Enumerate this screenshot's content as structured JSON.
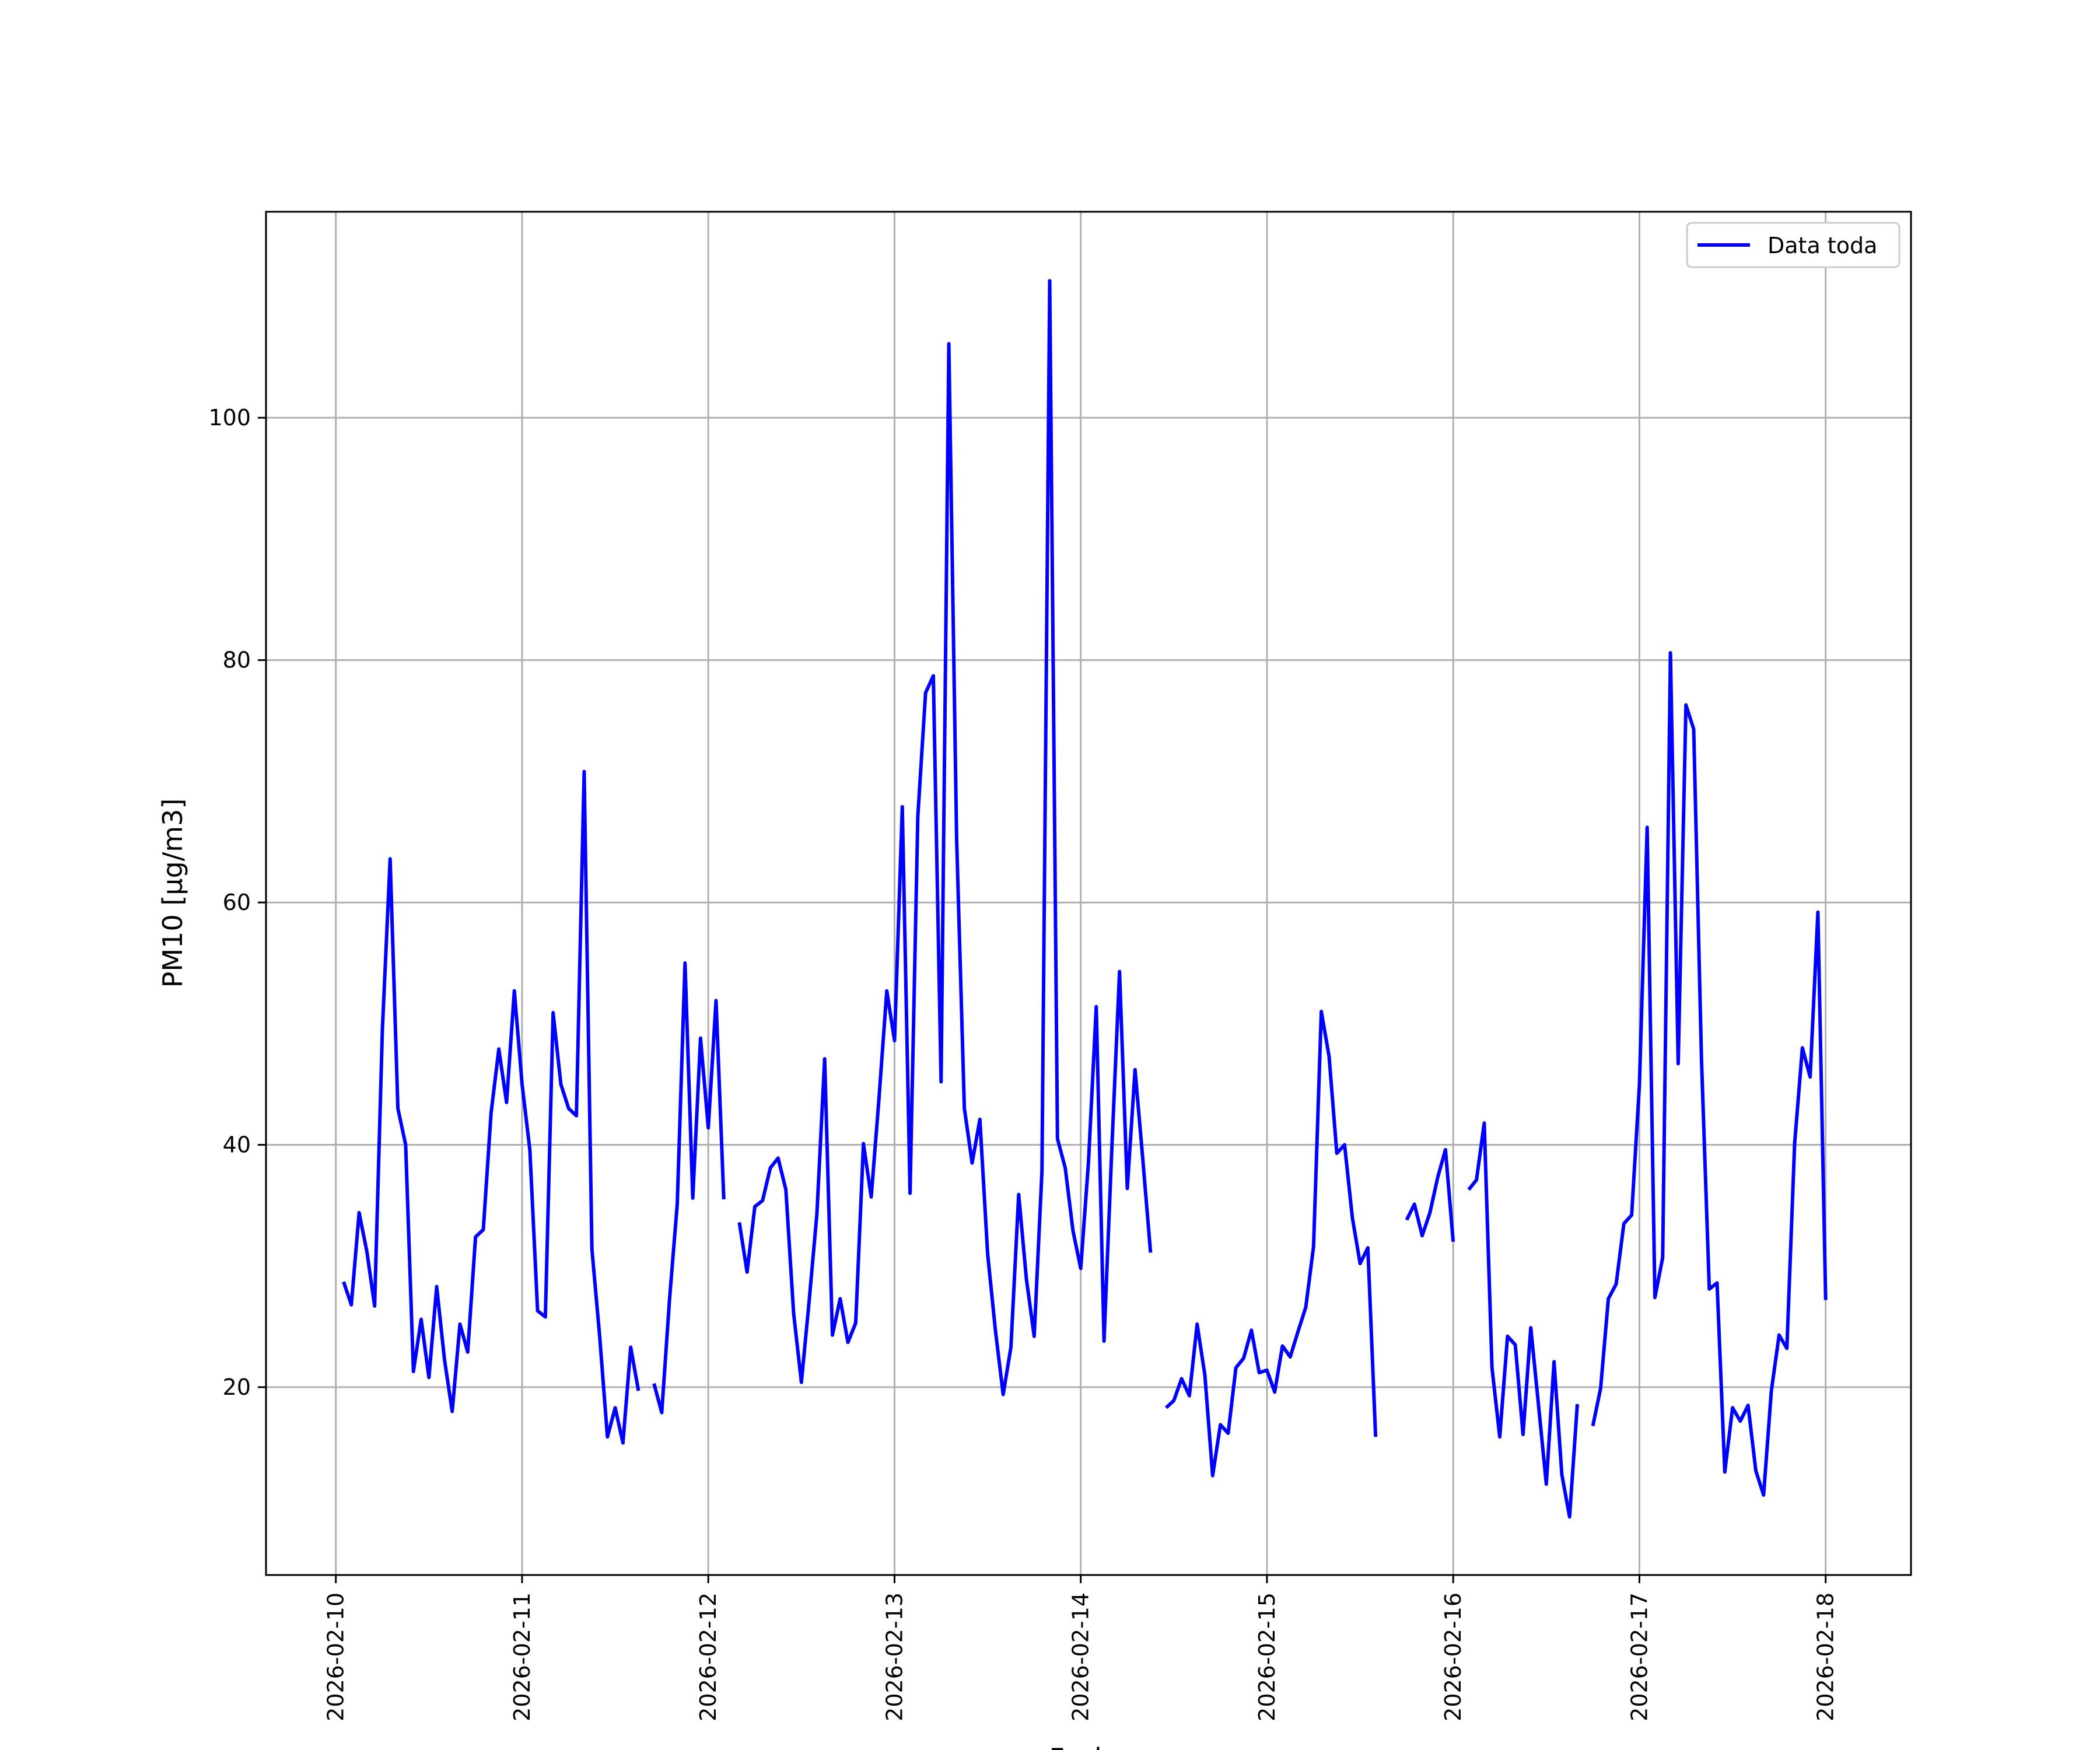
{
  "chart_data": {
    "type": "line",
    "title": "",
    "xlabel": "Fecha",
    "ylabel": "PM10 [μg/m3]",
    "x_tick_labels": [
      "2026-02-10",
      "2026-02-11",
      "2026-02-12",
      "2026-02-13",
      "2026-02-14",
      "2026-02-15",
      "2026-02-16",
      "2026-02-17",
      "2026-02-18"
    ],
    "y_ticks": [
      20,
      40,
      60,
      80,
      100
    ],
    "xlim": [
      "2026-02-09T15:00",
      "2026-02-18T11:00"
    ],
    "ylim": [
      4.5,
      117
    ],
    "grid": true,
    "legend": "upper right",
    "series": [
      {
        "name": "Data toda",
        "color": "#0000ff",
        "points": [
          [
            "2026-02-10T01:00",
            28.7
          ],
          [
            "2026-02-10T02:00",
            26.8
          ],
          [
            "2026-02-10T03:00",
            34.4
          ],
          [
            "2026-02-10T04:00",
            31.2
          ],
          [
            "2026-02-10T05:00",
            26.7
          ],
          [
            "2026-02-10T06:00",
            49.5
          ],
          [
            "2026-02-10T07:00",
            63.6
          ],
          [
            "2026-02-10T08:00",
            43.0
          ],
          [
            "2026-02-10T09:00",
            40.0
          ],
          [
            "2026-02-10T10:00",
            21.3
          ],
          [
            "2026-02-10T11:00",
            25.6
          ],
          [
            "2026-02-10T12:00",
            20.8
          ],
          [
            "2026-02-10T13:00",
            28.3
          ],
          [
            "2026-02-10T14:00",
            22.3
          ],
          [
            "2026-02-10T15:00",
            18.0
          ],
          [
            "2026-02-10T16:00",
            25.2
          ],
          [
            "2026-02-10T17:00",
            22.9
          ],
          [
            "2026-02-10T18:00",
            32.4
          ],
          [
            "2026-02-10T19:00",
            33.0
          ],
          [
            "2026-02-10T20:00",
            42.6
          ],
          [
            "2026-02-10T21:00",
            47.9
          ],
          [
            "2026-02-10T22:00",
            43.5
          ],
          [
            "2026-02-10T23:00",
            52.7
          ],
          [
            "2026-02-11T00:00",
            45.0
          ],
          [
            "2026-02-11T01:00",
            39.6
          ],
          [
            "2026-02-11T02:00",
            26.3
          ],
          [
            "2026-02-11T03:00",
            25.8
          ],
          [
            "2026-02-11T04:00",
            50.9
          ],
          [
            "2026-02-11T05:00",
            45.0
          ],
          [
            "2026-02-11T06:00",
            43.0
          ],
          [
            "2026-02-11T07:00",
            42.4
          ],
          [
            "2026-02-11T08:00",
            70.8
          ],
          [
            "2026-02-11T09:00",
            31.4
          ],
          [
            "2026-02-11T10:00",
            24.2
          ],
          [
            "2026-02-11T11:00",
            15.9
          ],
          [
            "2026-02-11T12:00",
            18.3
          ],
          [
            "2026-02-11T13:00",
            15.4
          ],
          [
            "2026-02-11T14:00",
            23.3
          ],
          [
            "2026-02-11T15:00",
            19.7
          ],
          [
            "2026-02-11T17:00",
            20.3
          ],
          [
            "2026-02-11T18:00",
            17.9
          ],
          [
            "2026-02-11T19:00",
            27.2
          ],
          [
            "2026-02-11T20:00",
            35.1
          ],
          [
            "2026-02-11T21:00",
            55.0
          ],
          [
            "2026-02-11T22:00",
            35.6
          ],
          [
            "2026-02-11T23:00",
            48.8
          ],
          [
            "2026-02-12T00:00",
            41.4
          ],
          [
            "2026-02-12T01:00",
            51.9
          ],
          [
            "2026-02-12T02:00",
            35.5
          ],
          [
            "2026-02-12T04:00",
            33.6
          ],
          [
            "2026-02-12T05:00",
            29.5
          ],
          [
            "2026-02-12T06:00",
            34.9
          ],
          [
            "2026-02-12T07:00",
            35.4
          ],
          [
            "2026-02-12T08:00",
            38.1
          ],
          [
            "2026-02-12T09:00",
            38.9
          ],
          [
            "2026-02-12T10:00",
            36.3
          ],
          [
            "2026-02-12T11:00",
            26.1
          ],
          [
            "2026-02-12T12:00",
            20.4
          ],
          [
            "2026-02-12T13:00",
            27.1
          ],
          [
            "2026-02-12T14:00",
            34.3
          ],
          [
            "2026-02-12T15:00",
            47.1
          ],
          [
            "2026-02-12T16:00",
            24.3
          ],
          [
            "2026-02-12T17:00",
            27.3
          ],
          [
            "2026-02-12T18:00",
            23.7
          ],
          [
            "2026-02-12T19:00",
            25.3
          ],
          [
            "2026-02-12T20:00",
            40.1
          ],
          [
            "2026-02-12T21:00",
            35.7
          ],
          [
            "2026-02-12T22:00",
            43.8
          ],
          [
            "2026-02-12T23:00",
            52.7
          ],
          [
            "2026-02-13T00:00",
            48.6
          ],
          [
            "2026-02-13T01:00",
            67.9
          ],
          [
            "2026-02-13T02:00",
            36.0
          ],
          [
            "2026-02-13T03:00",
            67.1
          ],
          [
            "2026-02-13T04:00",
            77.3
          ],
          [
            "2026-02-13T05:00",
            78.7
          ],
          [
            "2026-02-13T06:00",
            45.2
          ],
          [
            "2026-02-13T07:00",
            106.1
          ],
          [
            "2026-02-13T08:00",
            65.3
          ],
          [
            "2026-02-13T09:00",
            43.0
          ],
          [
            "2026-02-13T10:00",
            38.5
          ],
          [
            "2026-02-13T11:00",
            42.1
          ],
          [
            "2026-02-13T12:00",
            31.0
          ],
          [
            "2026-02-13T13:00",
            24.7
          ],
          [
            "2026-02-13T14:00",
            19.4
          ],
          [
            "2026-02-13T15:00",
            23.3
          ],
          [
            "2026-02-13T16:00",
            35.9
          ],
          [
            "2026-02-13T17:00",
            28.9
          ],
          [
            "2026-02-13T18:00",
            24.2
          ],
          [
            "2026-02-13T19:00",
            37.8
          ],
          [
            "2026-02-13T20:00",
            111.3
          ],
          [
            "2026-02-13T21:00",
            40.5
          ],
          [
            "2026-02-13T22:00",
            38.1
          ],
          [
            "2026-02-13T23:00",
            32.9
          ],
          [
            "2026-02-14T00:00",
            29.8
          ],
          [
            "2026-02-14T01:00",
            38.6
          ],
          [
            "2026-02-14T02:00",
            51.4
          ],
          [
            "2026-02-14T03:00",
            23.8
          ],
          [
            "2026-02-14T04:00",
            39.6
          ],
          [
            "2026-02-14T05:00",
            54.3
          ],
          [
            "2026-02-14T06:00",
            36.4
          ],
          [
            "2026-02-14T07:00",
            46.2
          ],
          [
            "2026-02-14T08:00",
            38.8
          ],
          [
            "2026-02-14T09:00",
            31.1
          ],
          [
            "2026-02-14T11:00",
            18.3
          ],
          [
            "2026-02-14T12:00",
            18.9
          ],
          [
            "2026-02-14T13:00",
            20.7
          ],
          [
            "2026-02-14T14:00",
            19.3
          ],
          [
            "2026-02-14T15:00",
            25.2
          ],
          [
            "2026-02-14T16:00",
            21.0
          ],
          [
            "2026-02-14T17:00",
            12.7
          ],
          [
            "2026-02-14T18:00",
            16.9
          ],
          [
            "2026-02-14T19:00",
            16.2
          ],
          [
            "2026-02-14T20:00",
            21.6
          ],
          [
            "2026-02-14T21:00",
            22.4
          ],
          [
            "2026-02-14T22:00",
            24.7
          ],
          [
            "2026-02-14T23:00",
            21.2
          ],
          [
            "2026-02-15T00:00",
            21.4
          ],
          [
            "2026-02-15T01:00",
            19.6
          ],
          [
            "2026-02-15T02:00",
            23.4
          ],
          [
            "2026-02-15T03:00",
            22.5
          ],
          [
            "2026-02-15T04:00",
            24.6
          ],
          [
            "2026-02-15T05:00",
            26.6
          ],
          [
            "2026-02-15T06:00",
            31.6
          ],
          [
            "2026-02-15T07:00",
            51.0
          ],
          [
            "2026-02-15T08:00",
            47.3
          ],
          [
            "2026-02-15T09:00",
            39.3
          ],
          [
            "2026-02-15T10:00",
            40.0
          ],
          [
            "2026-02-15T11:00",
            34.0
          ],
          [
            "2026-02-15T12:00",
            30.2
          ],
          [
            "2026-02-15T13:00",
            31.5
          ],
          [
            "2026-02-15T14:00",
            15.9
          ],
          [
            "2026-02-15T18:00",
            33.8
          ],
          [
            "2026-02-15T19:00",
            35.1
          ],
          [
            "2026-02-15T20:00",
            32.5
          ],
          [
            "2026-02-15T21:00",
            34.4
          ],
          [
            "2026-02-15T22:00",
            37.3
          ],
          [
            "2026-02-15T23:00",
            39.6
          ],
          [
            "2026-02-16T00:00",
            32.0
          ],
          [
            "2026-02-16T02:00",
            36.3
          ],
          [
            "2026-02-16T03:00",
            37.1
          ],
          [
            "2026-02-16T04:00",
            41.8
          ],
          [
            "2026-02-16T05:00",
            21.6
          ],
          [
            "2026-02-16T06:00",
            15.9
          ],
          [
            "2026-02-16T07:00",
            24.2
          ],
          [
            "2026-02-16T08:00",
            23.5
          ],
          [
            "2026-02-16T09:00",
            16.1
          ],
          [
            "2026-02-16T10:00",
            24.9
          ],
          [
            "2026-02-16T11:00",
            18.5
          ],
          [
            "2026-02-16T12:00",
            12.0
          ],
          [
            "2026-02-16T13:00",
            22.1
          ],
          [
            "2026-02-16T14:00",
            12.8
          ],
          [
            "2026-02-16T15:00",
            9.3
          ],
          [
            "2026-02-16T16:00",
            18.6
          ],
          [
            "2026-02-16T18:00",
            16.8
          ],
          [
            "2026-02-16T19:00",
            19.9
          ],
          [
            "2026-02-16T20:00",
            27.3
          ],
          [
            "2026-02-16T21:00",
            28.5
          ],
          [
            "2026-02-16T22:00",
            33.5
          ],
          [
            "2026-02-16T23:00",
            34.2
          ],
          [
            "2026-02-17T00:00",
            44.9
          ],
          [
            "2026-02-17T01:00",
            66.2
          ],
          [
            "2026-02-17T02:00",
            27.4
          ],
          [
            "2026-02-17T03:00",
            30.7
          ],
          [
            "2026-02-17T04:00",
            80.6
          ],
          [
            "2026-02-17T05:00",
            46.7
          ],
          [
            "2026-02-17T06:00",
            76.3
          ],
          [
            "2026-02-17T07:00",
            74.3
          ],
          [
            "2026-02-17T08:00",
            47.1
          ],
          [
            "2026-02-17T09:00",
            28.1
          ],
          [
            "2026-02-17T10:00",
            28.6
          ],
          [
            "2026-02-17T11:00",
            13.0
          ],
          [
            "2026-02-17T12:00",
            18.3
          ],
          [
            "2026-02-17T13:00",
            17.2
          ],
          [
            "2026-02-17T14:00",
            18.5
          ],
          [
            "2026-02-17T15:00",
            13.1
          ],
          [
            "2026-02-17T16:00",
            11.1
          ],
          [
            "2026-02-17T17:00",
            19.7
          ],
          [
            "2026-02-17T18:00",
            24.3
          ],
          [
            "2026-02-17T19:00",
            23.2
          ],
          [
            "2026-02-17T20:00",
            40.1
          ],
          [
            "2026-02-17T21:00",
            48.0
          ],
          [
            "2026-02-17T22:00",
            45.6
          ],
          [
            "2026-02-17T23:00",
            59.2
          ],
          [
            "2026-02-18T00:00",
            27.2
          ]
        ]
      }
    ]
  }
}
